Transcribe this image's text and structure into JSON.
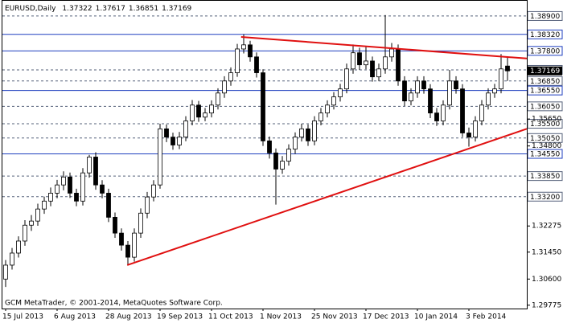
{
  "chart_data": {
    "type": "candlestick",
    "title": "EURUSD,Daily",
    "watermark": "GCM MetaTrader, © 2001-2014, MetaQuotes Software Corp.",
    "categories": [
      "15 Jul 2013",
      null,
      null,
      null,
      null,
      null,
      null,
      null,
      "6 Aug 2013",
      null,
      null,
      null,
      null,
      null,
      null,
      null,
      "28 Aug 2013",
      null,
      null,
      null,
      null,
      null,
      null,
      null,
      "19 Sep 2013",
      null,
      null,
      null,
      null,
      null,
      null,
      null,
      "11 Oct 2013",
      null,
      null,
      null,
      null,
      null,
      null,
      null,
      "1 Nov 2013",
      null,
      null,
      null,
      null,
      null,
      null,
      null,
      "25 Nov 2013",
      null,
      null,
      null,
      null,
      null,
      null,
      null,
      "17 Dec 2013",
      null,
      null,
      null,
      null,
      null,
      null,
      null,
      "10 Jan 2014",
      null,
      null,
      null,
      null,
      null,
      null,
      null,
      "3 Feb 2014",
      null,
      null,
      null,
      null,
      null,
      null
    ],
    "open": [
      1.306,
      1.3104,
      1.3142,
      1.318,
      1.323,
      1.3243,
      1.3281,
      1.3306,
      1.3331,
      1.3357,
      1.3382,
      1.3331,
      1.3306,
      1.3395,
      1.3445,
      1.3357,
      1.3331,
      1.3255,
      1.3205,
      1.3167,
      1.3129,
      1.3205,
      1.3268,
      1.3319,
      1.3357,
      1.3534,
      1.3508,
      1.3483,
      1.3508,
      1.3559,
      1.3609,
      1.3571,
      1.3584,
      1.3609,
      1.3647,
      1.3685,
      1.3711,
      1.3786,
      1.3799,
      1.3761,
      1.3711,
      1.3496,
      1.3458,
      1.3407,
      1.3432,
      1.347,
      1.3508,
      1.3534,
      1.3496,
      1.3559,
      1.3584,
      1.3609,
      1.3635,
      1.366,
      1.3723,
      1.3774,
      1.3736,
      1.3748,
      1.3698,
      1.3723,
      1.3761,
      1.3786,
      1.3685,
      1.3622,
      1.3647,
      1.3685,
      1.366,
      1.3584,
      1.3559,
      1.3609,
      1.3685,
      1.366,
      1.3521,
      1.3508,
      1.3559,
      1.3609,
      1.3647,
      1.366,
      1.37322
    ],
    "high": [
      1.312,
      1.3158,
      1.3195,
      1.3246,
      1.3262,
      1.3298,
      1.332,
      1.3349,
      1.3373,
      1.34,
      1.3396,
      1.3345,
      1.341,
      1.3452,
      1.346,
      1.3372,
      1.3345,
      1.327,
      1.322,
      1.318,
      1.322,
      1.3283,
      1.3335,
      1.3372,
      1.355,
      1.3548,
      1.3522,
      1.3524,
      1.3574,
      1.3625,
      1.3622,
      1.36,
      1.3624,
      1.3662,
      1.37,
      1.3728,
      1.3802,
      1.3832,
      1.3812,
      1.3775,
      1.3722,
      1.351,
      1.3472,
      1.3448,
      1.3485,
      1.3523,
      1.355,
      1.3548,
      1.3574,
      1.36,
      1.3624,
      1.365,
      1.3676,
      1.374,
      1.38,
      1.379,
      1.3795,
      1.3762,
      1.374,
      1.3893,
      1.3805,
      1.38,
      1.37,
      1.3662,
      1.37,
      1.37,
      1.3675,
      1.36,
      1.3624,
      1.372,
      1.37,
      1.3675,
      1.3538,
      1.3574,
      1.3625,
      1.3662,
      1.3676,
      1.377,
      1.37617
    ],
    "low": [
      1.3035,
      1.309,
      1.3128,
      1.3165,
      1.3212,
      1.3228,
      1.3266,
      1.329,
      1.3315,
      1.334,
      1.3316,
      1.329,
      1.3292,
      1.338,
      1.3342,
      1.3315,
      1.324,
      1.319,
      1.315,
      1.3105,
      1.3115,
      1.319,
      1.3252,
      1.3305,
      1.3345,
      1.3492,
      1.3468,
      1.347,
      1.3495,
      1.3545,
      1.3556,
      1.3558,
      1.357,
      1.3595,
      1.3632,
      1.367,
      1.3698,
      1.3772,
      1.3746,
      1.3696,
      1.348,
      1.344,
      1.3295,
      1.3392,
      1.3418,
      1.3455,
      1.3494,
      1.348,
      1.3482,
      1.3545,
      1.357,
      1.3595,
      1.362,
      1.3646,
      1.3708,
      1.372,
      1.3722,
      1.3683,
      1.3684,
      1.3708,
      1.3746,
      1.367,
      1.3606,
      1.3608,
      1.3632,
      1.3645,
      1.3568,
      1.3543,
      1.3545,
      1.3595,
      1.3645,
      1.3508,
      1.3478,
      1.3494,
      1.3545,
      1.3595,
      1.3632,
      1.3646,
      1.36851
    ],
    "close": [
      1.3104,
      1.3142,
      1.318,
      1.323,
      1.3243,
      1.3281,
      1.3306,
      1.3331,
      1.3357,
      1.3382,
      1.3331,
      1.3306,
      1.3395,
      1.3445,
      1.3357,
      1.3331,
      1.3255,
      1.3205,
      1.3167,
      1.3129,
      1.3205,
      1.3268,
      1.3319,
      1.3357,
      1.3534,
      1.3508,
      1.3483,
      1.3508,
      1.3559,
      1.3609,
      1.3571,
      1.3584,
      1.3609,
      1.3647,
      1.3685,
      1.3711,
      1.3786,
      1.3799,
      1.3761,
      1.3711,
      1.3496,
      1.3458,
      1.3407,
      1.3432,
      1.347,
      1.3508,
      1.3534,
      1.3496,
      1.3559,
      1.3584,
      1.3609,
      1.3635,
      1.366,
      1.3723,
      1.3774,
      1.3736,
      1.3748,
      1.3698,
      1.3723,
      1.3761,
      1.3786,
      1.3685,
      1.3622,
      1.3647,
      1.3685,
      1.366,
      1.3584,
      1.3559,
      1.3609,
      1.3685,
      1.366,
      1.3521,
      1.3508,
      1.3559,
      1.3609,
      1.3647,
      1.366,
      1.3723,
      1.37169
    ],
    "ylim": [
      1.2967,
      1.3938
    ],
    "yticks": [
      {
        "value": 1.3565,
        "label": "1.35650"
      },
      {
        "value": 1.348,
        "label": "1.34800"
      },
      {
        "value": 1.32275,
        "label": "1.32275"
      },
      {
        "value": 1.3145,
        "label": "1.31450"
      },
      {
        "value": 1.306,
        "label": "1.30600"
      },
      {
        "value": 1.29775,
        "label": "1.29775"
      }
    ],
    "levels": [
      {
        "value": 1.389,
        "label": "1.38900",
        "style": "dashed"
      },
      {
        "value": 1.3832,
        "label": "1.38320",
        "style": "solid"
      },
      {
        "value": 1.378,
        "label": "1.37800",
        "style": "solid"
      },
      {
        "value": 1.372,
        "label": "1.37200",
        "style": "dashed"
      },
      {
        "value": 1.3685,
        "label": "1.36850",
        "style": "dashed"
      },
      {
        "value": 1.3655,
        "label": "1.36550",
        "style": "solid"
      },
      {
        "value": 1.3605,
        "label": "1.36050",
        "style": "dashed"
      },
      {
        "value": 1.355,
        "label": "1.35500",
        "style": "dashed"
      },
      {
        "value": 1.3505,
        "label": "1.35050",
        "style": "dashed"
      },
      {
        "value": 1.3455,
        "label": "1.34550",
        "style": "solid"
      },
      {
        "value": 1.3385,
        "label": "1.33850",
        "style": "dashed"
      },
      {
        "value": 1.332,
        "label": "1.33200",
        "style": "dashed"
      }
    ],
    "level_colors": {
      "solid": "#1f3fbf",
      "dashed": "#55607a"
    },
    "trendlines": [
      {
        "color": "#e01010",
        "x": [
          36.6,
          81
        ],
        "y": [
          1.3824,
          1.3756
        ]
      },
      {
        "color": "#e01010",
        "x": [
          18.9,
          81
        ],
        "y": [
          1.3104,
          1.3534
        ]
      }
    ],
    "bull_color": "#ffffff",
    "bear_color": "#000000"
  }
}
